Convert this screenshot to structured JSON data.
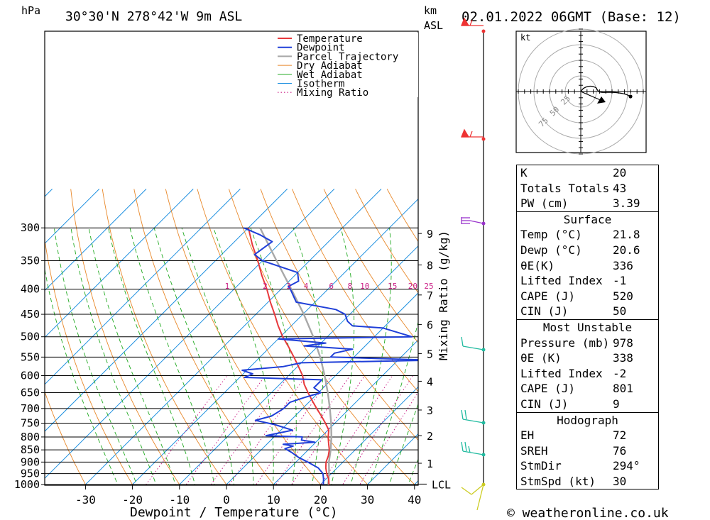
{
  "header": {
    "hpa_unit": "hPa",
    "location": "30°30'N  278°42'W  9m  ASL",
    "km_unit": "km",
    "asl_unit": "ASL",
    "datetime": "02.01.2022  06GMT  (Base: 12)"
  },
  "footer": {
    "credit": "© weatheronline.co.uk"
  },
  "colors": {
    "temperature": "#e8393c",
    "dewpoint": "#1f3fd8",
    "parcel": "#a8a8a8",
    "dry_adiabat": "#e8882a",
    "wet_adiabat": "#22aa22",
    "isotherm": "#1e90e0",
    "mixing_ratio": "#cc2288",
    "wind_upper": "#e33",
    "wind_mid": "#9933cc",
    "wind_low": "#22bba0",
    "wind_surface": "#cccc22"
  },
  "chart_data": {
    "type": "skew-t",
    "xlabel": "Dewpoint / Temperature (°C)",
    "ylabel_right": "Mixing Ratio (g/kg)",
    "temp_ticks": [
      -30,
      -20,
      -10,
      0,
      10,
      20,
      30,
      40
    ],
    "pressure_levels": [
      300,
      350,
      400,
      450,
      500,
      550,
      600,
      650,
      700,
      750,
      800,
      850,
      900,
      950,
      1000
    ],
    "km_ticks": [
      {
        "label": "1",
        "p": 905
      },
      {
        "label": "2",
        "p": 795
      },
      {
        "label": "3",
        "p": 705
      },
      {
        "label": "4",
        "p": 616
      },
      {
        "label": "5",
        "p": 541
      },
      {
        "label": "6",
        "p": 472
      },
      {
        "label": "7",
        "p": 411
      },
      {
        "label": "8",
        "p": 357
      },
      {
        "label": "9",
        "p": 308
      }
    ],
    "lcl": {
      "label": "LCL",
      "p": 998
    },
    "mixing_ratio_labels": [
      "1",
      "2",
      "3",
      "4",
      "6",
      "8",
      "10",
      "15",
      "20",
      "25"
    ],
    "mixing_ratio_values": [
      1,
      2,
      3,
      4,
      6,
      8,
      10,
      15,
      20,
      25
    ],
    "legend": [
      "Temperature",
      "Dewpoint",
      "Parcel Trajectory",
      "Dry Adiabat",
      "Wet Adiabat",
      "Isotherm",
      "Mixing Ratio"
    ],
    "temperature": [
      [
        1000,
        21.8
      ],
      [
        975,
        20.6
      ],
      [
        950,
        19.0
      ],
      [
        925,
        17.6
      ],
      [
        900,
        16.4
      ],
      [
        875,
        15.6
      ],
      [
        850,
        14.5
      ],
      [
        825,
        13.0
      ],
      [
        800,
        11.5
      ],
      [
        775,
        10.2
      ],
      [
        750,
        8.0
      ],
      [
        725,
        5.6
      ],
      [
        700,
        3.0
      ],
      [
        675,
        0.4
      ],
      [
        650,
        -2.2
      ],
      [
        625,
        -4.8
      ],
      [
        600,
        -7.0
      ],
      [
        575,
        -9.8
      ],
      [
        550,
        -12.8
      ],
      [
        525,
        -16.0
      ],
      [
        500,
        -19.5
      ],
      [
        475,
        -22.8
      ],
      [
        450,
        -26.0
      ],
      [
        425,
        -29.5
      ],
      [
        400,
        -33.0
      ],
      [
        375,
        -37.0
      ],
      [
        350,
        -41.0
      ],
      [
        325,
        -45.5
      ],
      [
        300,
        -50.0
      ]
    ],
    "dewpoint": [
      [
        1000,
        20.6
      ],
      [
        975,
        19.5
      ],
      [
        950,
        18.2
      ],
      [
        925,
        16.0
      ],
      [
        900,
        12.5
      ],
      [
        880,
        9.5
      ],
      [
        860,
        7.0
      ],
      [
        845,
        4.8
      ],
      [
        835,
        6.0
      ],
      [
        828,
        3.5
      ],
      [
        820,
        9.8
      ],
      [
        812,
        6.5
      ],
      [
        800,
        6.0
      ],
      [
        795,
        -2.0
      ],
      [
        775,
        2.5
      ],
      [
        755,
        -2.5
      ],
      [
        740,
        -7.5
      ],
      [
        725,
        -5.0
      ],
      [
        700,
        -4.0
      ],
      [
        680,
        -4.0
      ],
      [
        665,
        -2.0
      ],
      [
        650,
        0.5
      ],
      [
        635,
        -2.0
      ],
      [
        612,
        -2.0
      ],
      [
        605,
        -19.0
      ],
      [
        595,
        -18.0
      ],
      [
        585,
        -21.0
      ],
      [
        575,
        -13.0
      ],
      [
        565,
        -10.0
      ],
      [
        558,
        17.0
      ],
      [
        550,
        -5.0
      ],
      [
        540,
        -5.0
      ],
      [
        530,
        -2.0
      ],
      [
        522,
        -13.0
      ],
      [
        515,
        -9.0
      ],
      [
        505,
        -20.0
      ],
      [
        500,
        8.0
      ],
      [
        480,
        0.0
      ],
      [
        475,
        -7.0
      ],
      [
        465,
        -9.0
      ],
      [
        450,
        -11.0
      ],
      [
        440,
        -14.0
      ],
      [
        425,
        -24.0
      ],
      [
        400,
        -28.0
      ],
      [
        395,
        -29.0
      ],
      [
        385,
        -28.0
      ],
      [
        370,
        -30.0
      ],
      [
        350,
        -40.0
      ],
      [
        340,
        -43.0
      ],
      [
        320,
        -42.0
      ],
      [
        310,
        -46.0
      ],
      [
        300,
        -51.0
      ]
    ],
    "parcel": [
      [
        1000,
        21.8
      ],
      [
        997,
        21.5
      ],
      [
        950,
        19.5
      ],
      [
        900,
        17.0
      ],
      [
        850,
        14.8
      ],
      [
        800,
        12.2
      ],
      [
        750,
        9.2
      ],
      [
        700,
        5.8
      ],
      [
        650,
        2.0
      ],
      [
        600,
        -2.3
      ],
      [
        550,
        -7.2
      ],
      [
        500,
        -13.0
      ],
      [
        450,
        -19.8
      ],
      [
        400,
        -27.8
      ],
      [
        350,
        -37.0
      ],
      [
        300,
        -47.5
      ]
    ]
  },
  "hodograph": {
    "unit": "kt",
    "ring_labels": [
      "25",
      "50",
      "75"
    ]
  },
  "indices": [
    {
      "label": "K",
      "value": "20"
    },
    {
      "label": "Totals Totals",
      "value": "43"
    },
    {
      "label": "PW (cm)",
      "value": "3.39"
    }
  ],
  "surface": {
    "title": "Surface",
    "rows": [
      {
        "label": "Temp (°C)",
        "value": "21.8"
      },
      {
        "label": "Dewp (°C)",
        "value": "20.6"
      },
      {
        "label": "θE(K)",
        "value": "336"
      },
      {
        "label": "Lifted Index",
        "value": "-1"
      },
      {
        "label": "CAPE (J)",
        "value": "520"
      },
      {
        "label": "CIN (J)",
        "value": "50"
      }
    ]
  },
  "most_unstable": {
    "title": "Most Unstable",
    "rows": [
      {
        "label": "Pressure (mb)",
        "value": "978"
      },
      {
        "label": "θE (K)",
        "value": "338"
      },
      {
        "label": "Lifted Index",
        "value": "-2"
      },
      {
        "label": "CAPE (J)",
        "value": "801"
      },
      {
        "label": "CIN (J)",
        "value": "9"
      }
    ]
  },
  "hodograph_stats": {
    "title": "Hodograph",
    "rows": [
      {
        "label": "EH",
        "value": "72"
      },
      {
        "label": "SREH",
        "value": "76"
      },
      {
        "label": "StmDir",
        "value": "294°"
      },
      {
        "label": "StmSpd (kt)",
        "value": "30"
      }
    ]
  }
}
